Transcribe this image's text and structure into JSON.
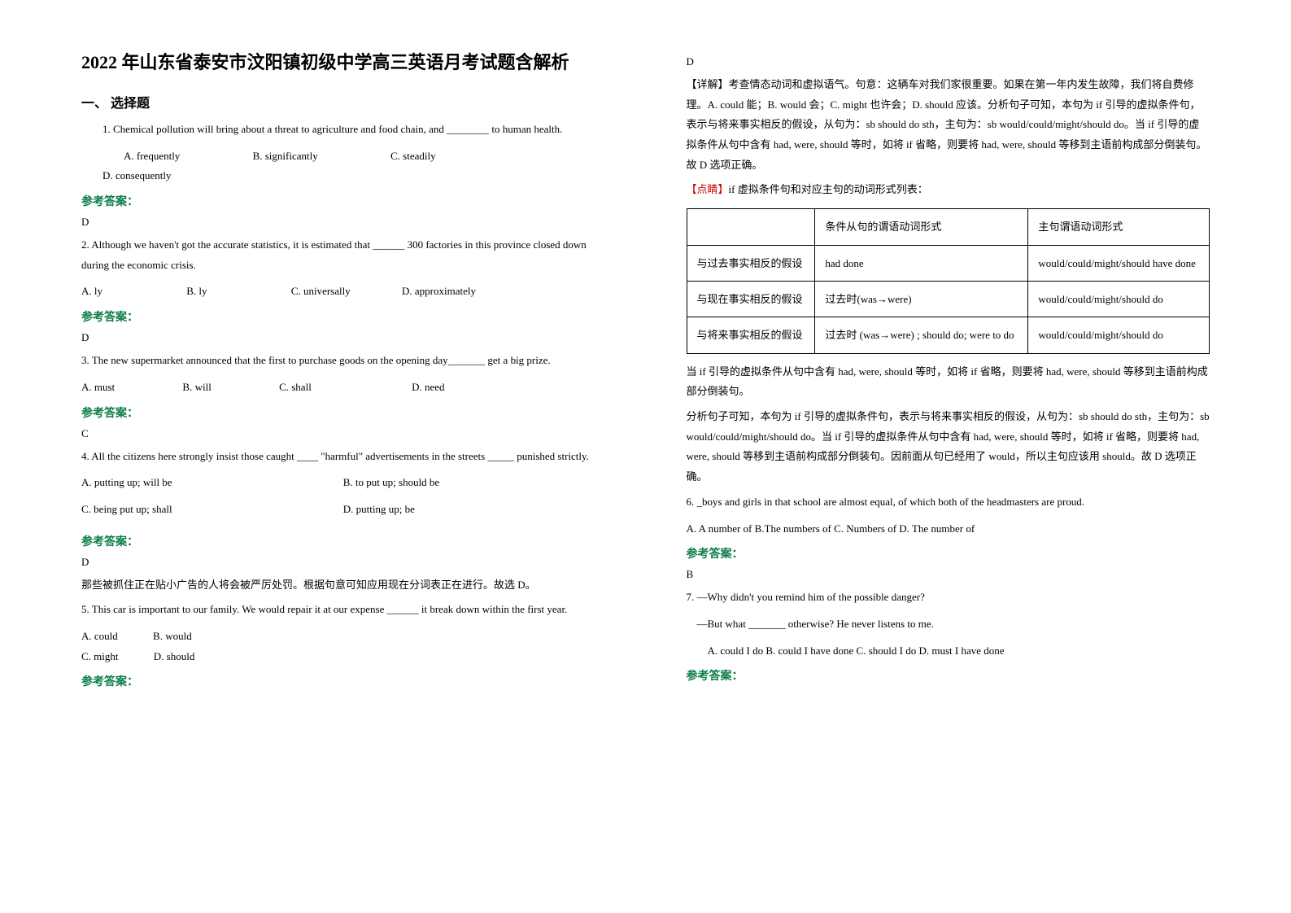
{
  "title": "2022 年山东省泰安市汶阳镇初级中学高三英语月考试题含解析",
  "section1": "一、 选择题",
  "q1": {
    "text": "1. Chemical pollution will bring about a threat to agriculture and food chain, and ________ to human health.",
    "opts": {
      "a": "A. frequently",
      "b": "B. significantly",
      "c": "C. steadily",
      "d": "D. consequently"
    }
  },
  "answer_label": "参考答案：",
  "q1_ans": "D",
  "q2": {
    "text": "2. Although we haven't got the accurate statistics, it is estimated that ______ 300 factories in this province closed down during the economic crisis.",
    "opts": {
      "a": "A. ly",
      "b": "B. ly",
      "c": "C. universally",
      "d": "D. approximately"
    }
  },
  "q2_ans": "D",
  "q3": {
    "text": "3. The new supermarket announced that the first to purchase goods on the opening day_______ get a big prize.",
    "opts": {
      "a": "A. must",
      "b": "B. will",
      "c": "C. shall",
      "d": "D. need"
    }
  },
  "q3_ans": "C",
  "q4": {
    "text": "4. All the citizens here strongly insist those caught ____ \"harmful\" advertisements in the streets _____ punished strictly.",
    "opts": {
      "a": "A. putting up; will be",
      "b": "B. to put up; should be",
      "c": "C. being put up; shall",
      "d": "D. putting up; be"
    }
  },
  "q4_ans": "D",
  "q4_exp": "那些被抓住正在贴小广告的人将会被严厉处罚。根据句意可知应用现在分词表正在进行。故选 D。",
  "q5": {
    "text": "5. This car is important to our family. We would repair it at our expense ______ it break down within the first year.",
    "opts": {
      "a": "A. could",
      "b": "B. would",
      "c": "C. might",
      "d": "D. should"
    }
  },
  "q5_ans": "D",
  "q5_exp1": "【详解】考查情态动词和虚拟语气。句意：这辆车对我们家很重要。如果在第一年内发生故障，我们将自费修理。A. could 能；B. would 会；C. might 也许会；D. should 应该。分析句子可知，本句为 if 引导的虚拟条件句，表示与将来事实相反的假设，从句为：sb should do sth，主句为：sb would/could/might/should do。当 if 引导的虚拟条件从句中含有 had, were, should 等时，如将 if 省略，则要将 had, were, should 等移到主语前构成部分倒装句。故 D 选项正确。",
  "q5_point_label": "【点睛】",
  "q5_point": "if 虚拟条件句和对应主句的动词形式列表：",
  "table": {
    "header": {
      "c1": "",
      "c2": "条件从句的谓语动词形式",
      "c3": "主句谓语动词形式"
    },
    "rows": [
      {
        "c1": "与过去事实相反的假设",
        "c2": "had done",
        "c3": "would/could/might/should have done"
      },
      {
        "c1": "与现在事实相反的假设",
        "c2": "过去时(was→were)",
        "c3": "would/could/might/should do"
      },
      {
        "c1": "与将来事实相反的假设",
        "c2": "过去时 (was→were) ; should do; were to do",
        "c3": "would/could/might/should do"
      }
    ]
  },
  "q5_exp2": "当 if 引导的虚拟条件从句中含有 had, were, should 等时，如将 if 省略，则要将 had, were, should 等移到主语前构成部分倒装句。",
  "q5_exp3": "分析句子可知，本句为 if 引导的虚拟条件句，表示与将来事实相反的假设，从句为：sb should do sth，主句为：sb would/could/might/should do。当 if 引导的虚拟条件从句中含有 had, were, should 等时，如将 if 省略，则要将 had, were, should 等移到主语前构成部分倒装句。因前面从句已经用了 would，所以主句应该用 should。故 D 选项正确。",
  "q6": {
    "text": "6.    _boys and girls in that school are almost equal, of which both of the headmasters are proud.",
    "opts": "A. A number of   B.The numbers of  C. Numbers of   D. The number of"
  },
  "q6_ans": "B",
  "q7": {
    "line1": "7. —Why didn't you remind him of the possible danger?",
    "line2": "—But what _______ otherwise? He never listens to me.",
    "opts": "A. could I do    B. could I have done   C. should I do     D. must I have done"
  }
}
